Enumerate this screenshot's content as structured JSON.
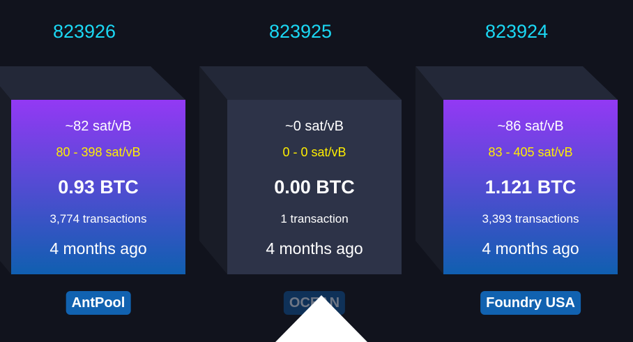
{
  "blocks": [
    {
      "height": "823926",
      "median_fee": "~82 sat/vB",
      "fee_range": "80 - 398 sat/vB",
      "total": "0.93 BTC",
      "tx_count": "3,774 transactions",
      "time": "4 months ago",
      "pool": "AntPool"
    },
    {
      "height": "823925",
      "median_fee": "~0 sat/vB",
      "fee_range": "0 - 0 sat/vB",
      "total": "0.00 BTC",
      "tx_count": "1 transaction",
      "time": "4 months ago",
      "pool": "OCEAN"
    },
    {
      "height": "823924",
      "median_fee": "~86 sat/vB",
      "fee_range": "83 - 405 sat/vB",
      "total": "1.121 BTC",
      "tx_count": "3,393 transactions",
      "time": "4 months ago",
      "pool": "Foundry USA"
    }
  ],
  "colors": {
    "height": "#1bd8f4",
    "fee_range": "#ffee00",
    "gradient_top": "#9339f4",
    "gradient_bottom": "#105fb0",
    "pool_badge": "#1162b0"
  },
  "selected_indicator_icon": "triangle-up-icon"
}
